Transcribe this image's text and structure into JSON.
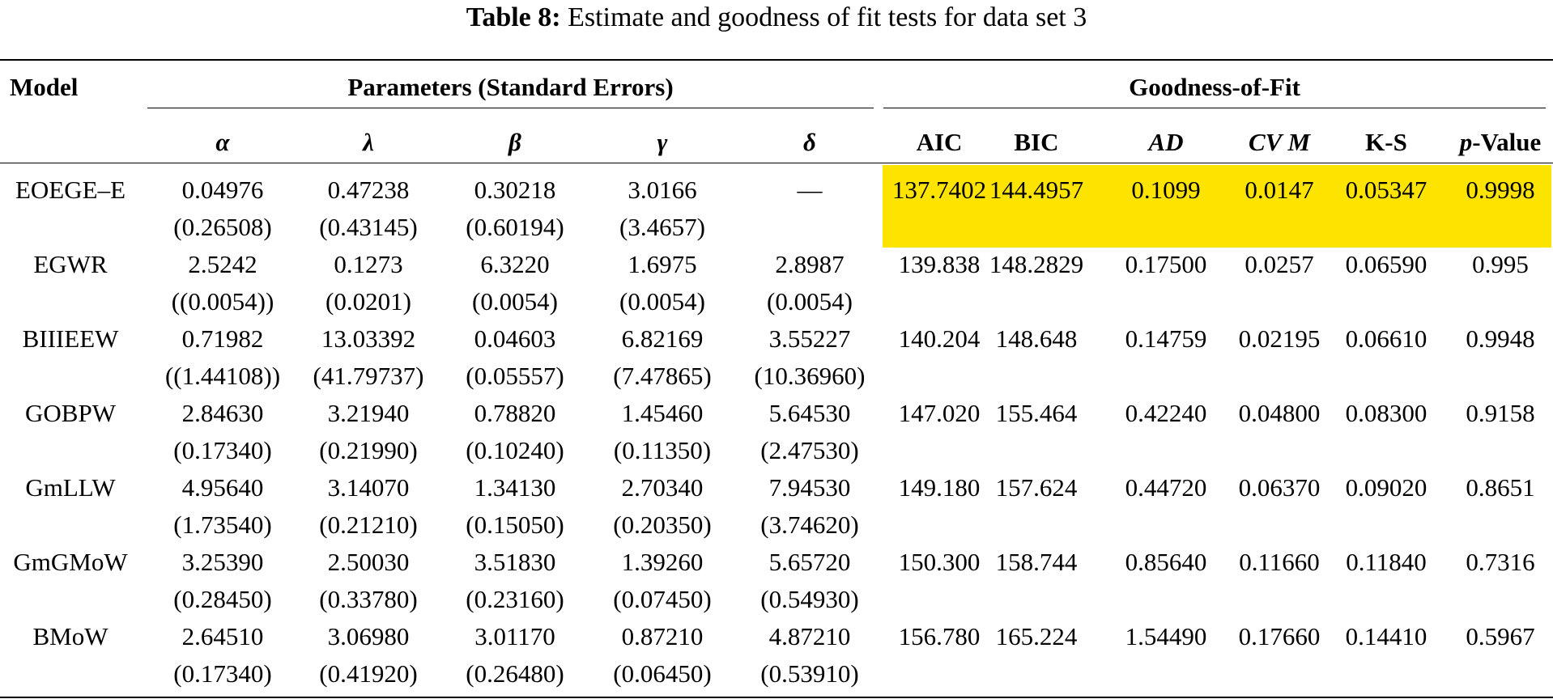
{
  "caption": {
    "label": "Table 8:",
    "text": "Estimate and goodness of fit tests for data set 3"
  },
  "headers": {
    "model": "Model",
    "parameters_group": "Parameters (Standard Errors)",
    "fit_group": "Goodness-of-Fit",
    "parameters": [
      "α",
      "λ",
      "β",
      "γ",
      "δ"
    ],
    "fit": [
      "AIC",
      "BIC",
      "AD",
      "CV M",
      "K-S",
      "p-Value"
    ]
  },
  "rows": [
    {
      "model": "EOEGE–E",
      "estimates": [
        "0.04976",
        "0.47238",
        "0.30218",
        "3.0166",
        "—"
      ],
      "std_errors": [
        "(0.26508)",
        "(0.43145)",
        "(0.60194)",
        "(3.4657)",
        ""
      ],
      "fit": [
        "137.7402",
        "144.4957",
        "0.1099",
        "0.0147",
        "0.05347",
        "0.9998"
      ],
      "highlighted": true
    },
    {
      "model": "EGWR",
      "estimates": [
        "2.5242",
        "0.1273",
        "6.3220",
        "1.6975",
        "2.8987"
      ],
      "std_errors": [
        "((0.0054))",
        "(0.0201)",
        "(0.0054)",
        "(0.0054)",
        "(0.0054)"
      ],
      "fit": [
        "139.838",
        "148.2829",
        "0.17500",
        "0.0257",
        "0.06590",
        "0.995"
      ],
      "highlighted": false
    },
    {
      "model": "BIIIEEW",
      "estimates": [
        "0.71982",
        "13.03392",
        "0.04603",
        "6.82169",
        "3.55227"
      ],
      "std_errors": [
        "((1.44108))",
        "(41.79737)",
        "(0.05557)",
        "(7.47865)",
        "(10.36960)"
      ],
      "fit": [
        "140.204",
        "148.648",
        "0.14759",
        "0.02195",
        "0.06610",
        "0.9948"
      ],
      "highlighted": false
    },
    {
      "model": "GOBPW",
      "estimates": [
        "2.84630",
        "3.21940",
        "0.78820",
        "1.45460",
        "5.64530"
      ],
      "std_errors": [
        "(0.17340)",
        "(0.21990)",
        "(0.10240)",
        "(0.11350)",
        "(2.47530)"
      ],
      "fit": [
        "147.020",
        "155.464",
        "0.42240",
        "0.04800",
        "0.08300",
        "0.9158"
      ],
      "highlighted": false
    },
    {
      "model": "GmLLW",
      "estimates": [
        "4.95640",
        "3.14070",
        "1.34130",
        "2.70340",
        "7.94530"
      ],
      "std_errors": [
        "(1.73540)",
        "(0.21210)",
        "(0.15050)",
        "(0.20350)",
        "(3.74620)"
      ],
      "fit": [
        "149.180",
        "157.624",
        "0.44720",
        "0.06370",
        "0.09020",
        "0.8651"
      ],
      "highlighted": false
    },
    {
      "model": "GmGMoW",
      "estimates": [
        "3.25390",
        "2.50030",
        "3.51830",
        "1.39260",
        "5.65720"
      ],
      "std_errors": [
        "(0.28450)",
        "(0.33780)",
        "(0.23160)",
        "(0.07450)",
        "(0.54930)"
      ],
      "fit": [
        "150.300",
        "158.744",
        "0.85640",
        "0.11660",
        "0.11840",
        "0.7316"
      ],
      "highlighted": false
    },
    {
      "model": "BMoW",
      "estimates": [
        "2.64510",
        "3.06980",
        "3.01170",
        "0.87210",
        "4.87210"
      ],
      "std_errors": [
        "(0.17340)",
        "(0.41920)",
        "(0.26480)",
        "(0.06450)",
        "(0.53910)"
      ],
      "fit": [
        "156.780",
        "165.224",
        "1.54490",
        "0.17660",
        "0.14410",
        "0.5967"
      ],
      "highlighted": false
    }
  ],
  "colors": {
    "highlight": "#fde400",
    "rule": "#000000"
  }
}
